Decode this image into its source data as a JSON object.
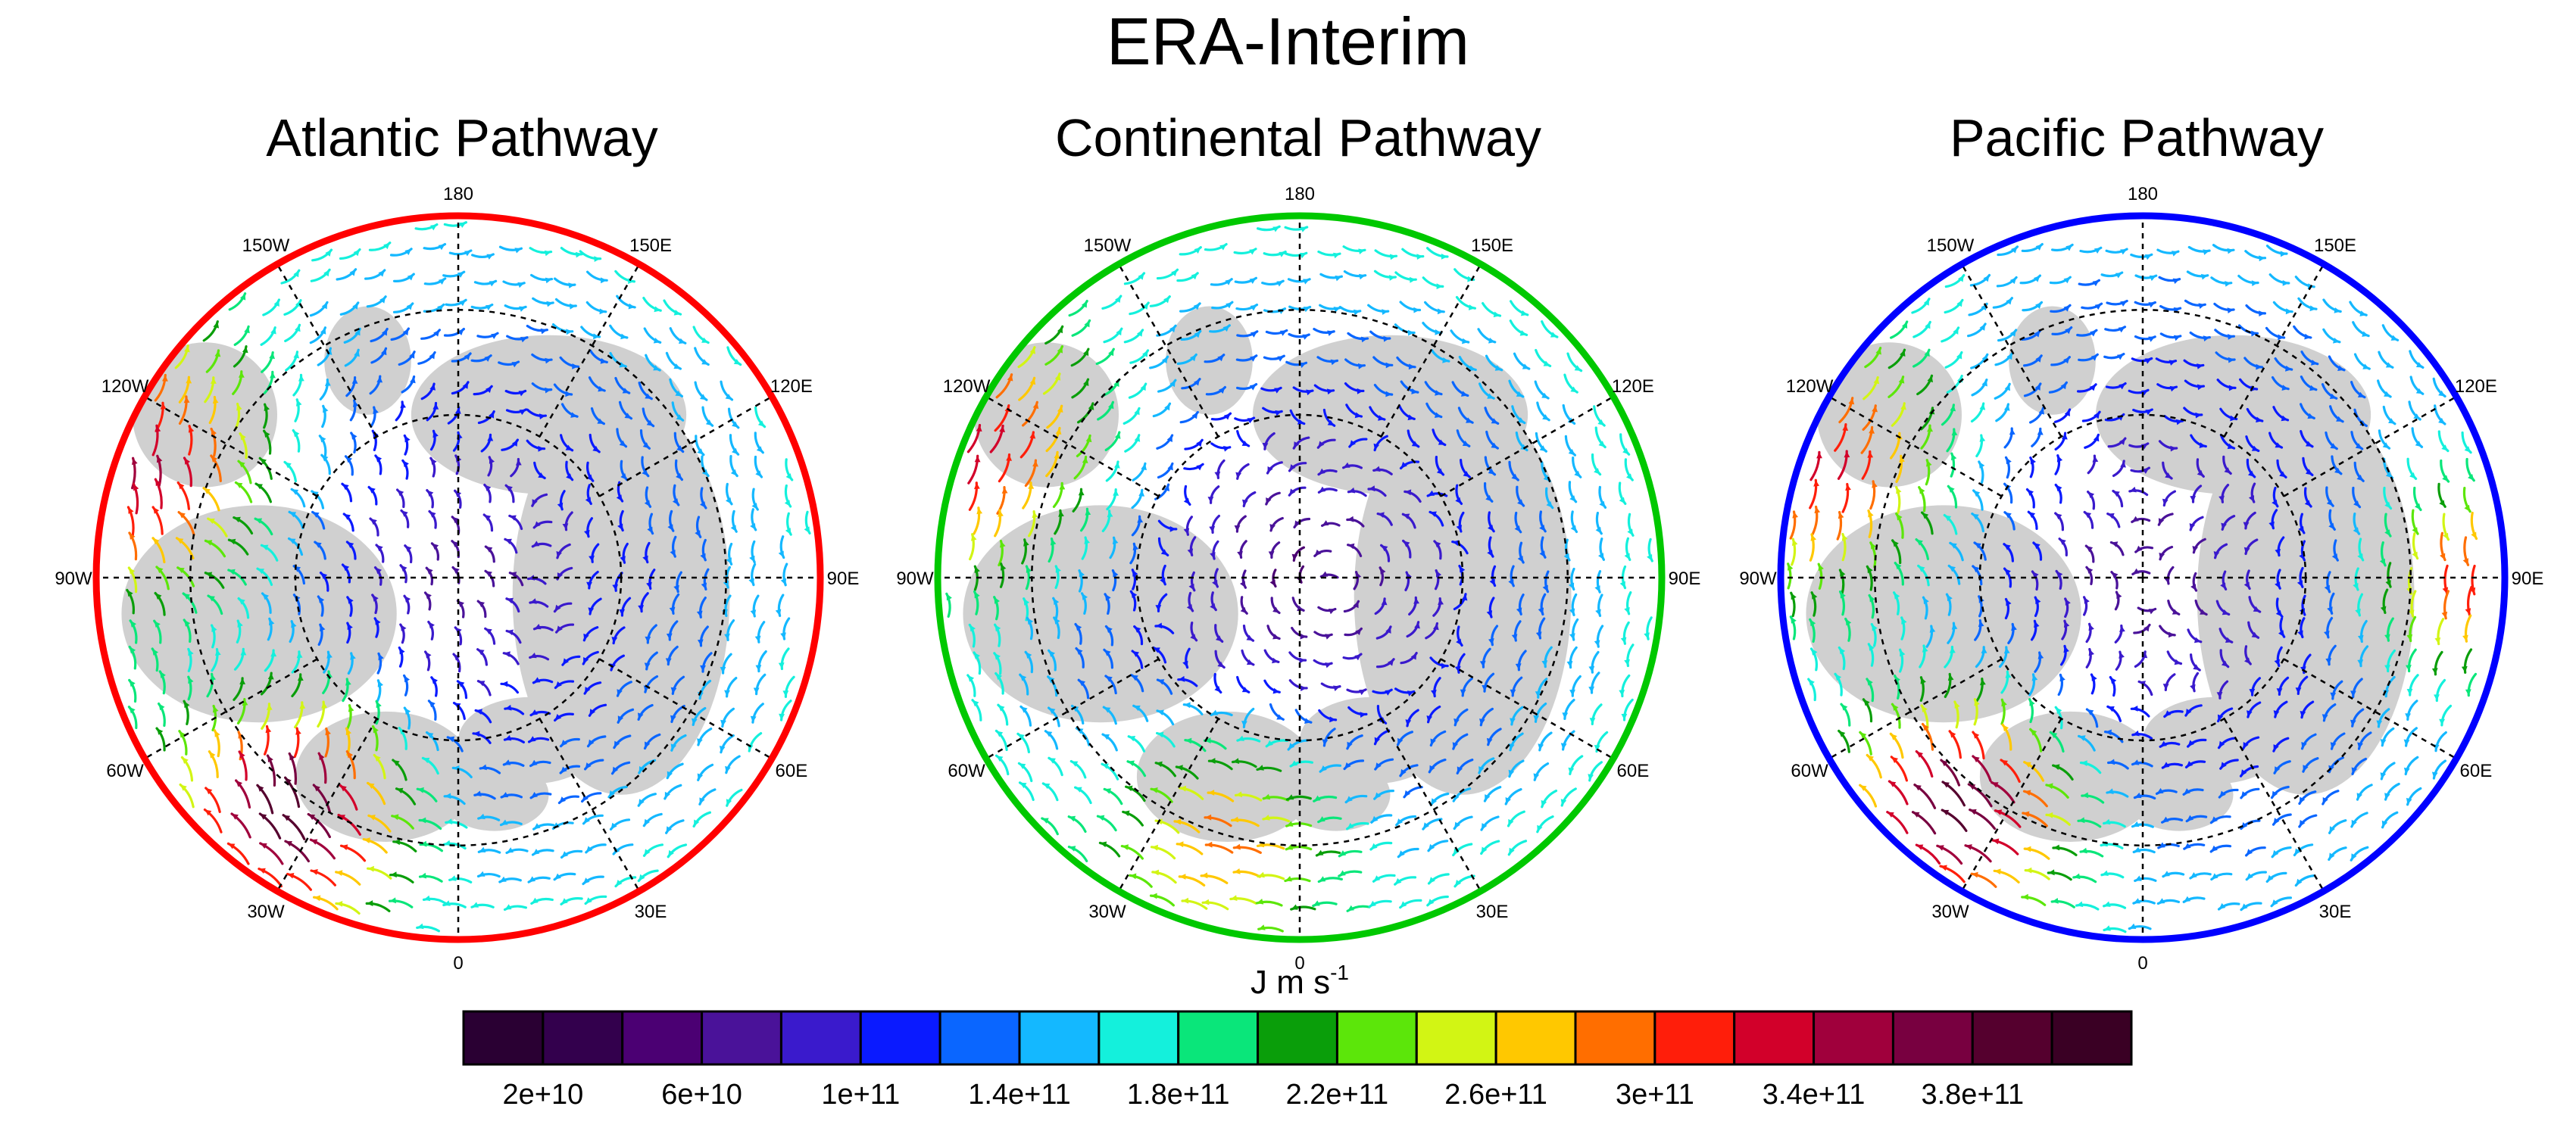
{
  "title": "ERA-Interim",
  "panels": [
    {
      "title": "Atlantic Pathway",
      "border_color": "#ff0000"
    },
    {
      "title": "Continental Pathway",
      "border_color": "#00c800"
    },
    {
      "title": "Pacific Pathway",
      "border_color": "#0000ff"
    }
  ],
  "longitude_labels": [
    "180",
    "150E",
    "120E",
    "90E",
    "60E",
    "30E",
    "0",
    "30W",
    "60W",
    "90W",
    "120W",
    "150W"
  ],
  "units": {
    "base": "J m s",
    "exponent": "-1"
  },
  "colorbar": {
    "colors": [
      "#2a0033",
      "#33004d",
      "#4b0073",
      "#4a1299",
      "#3a1acc",
      "#0a1aff",
      "#0a66ff",
      "#14b8ff",
      "#14f0dc",
      "#0ae67a",
      "#0a9e0a",
      "#5ce60a",
      "#d2f514",
      "#ffc800",
      "#ff6e00",
      "#ff1e0a",
      "#d2002a",
      "#a0003c",
      "#780040",
      "#55002e",
      "#3a0024"
    ],
    "tick_labels": [
      "2e+10",
      "6e+10",
      "1e+11",
      "1.4e+11",
      "1.8e+11",
      "2.2e+11",
      "2.6e+11",
      "3e+11",
      "3.4e+11",
      "3.8e+11"
    ]
  },
  "chart_data": {
    "type": "vector-field (polar stereographic maps)",
    "projection": "north polar stereographic, 0 at bottom, 180 at top",
    "colorbar_levels": [
      20000000000.0,
      40000000000.0,
      60000000000.0,
      80000000000.0,
      100000000000.0,
      120000000000.0,
      140000000000.0,
      160000000000.0,
      180000000000.0,
      200000000000.0,
      220000000000.0,
      240000000000.0,
      260000000000.0,
      280000000000.0,
      300000000000.0,
      320000000000.0,
      340000000000.0,
      360000000000.0,
      380000000000.0,
      400000000000.0
    ],
    "panels": [
      {
        "name": "Atlantic Pathway",
        "max_flux_region": "North Atlantic jet (30W–60W)",
        "features": [
          "cyclonic circulation over North America / Hudson Bay",
          "strong flux ~3.4e+11–4e+11 over North Atlantic",
          "flux 2.6e+11–3e+11 over northeast Pacific (120W)"
        ]
      },
      {
        "name": "Continental Pathway",
        "max_flux_region": "Mid-latitude Atlantic/Eurasia (30W–30E)",
        "features": [
          "closed cyclonic circulation centered near the pole",
          "moderate flux 1.8e+11–2.6e+11 along Eurasian margin",
          "flux 2.2e+11–2.6e+11 near 120W"
        ]
      },
      {
        "name": "Pacific Pathway",
        "max_flux_region": "North Atlantic jet (30W–60W)",
        "features": [
          "twin cyclonic gyres over North America and Siberia",
          "strong flux ~3.4e+11–4e+11 over North Atlantic",
          "flux 2.6e+11–3e+11 over northeast Pacific and near 90E"
        ]
      }
    ]
  }
}
